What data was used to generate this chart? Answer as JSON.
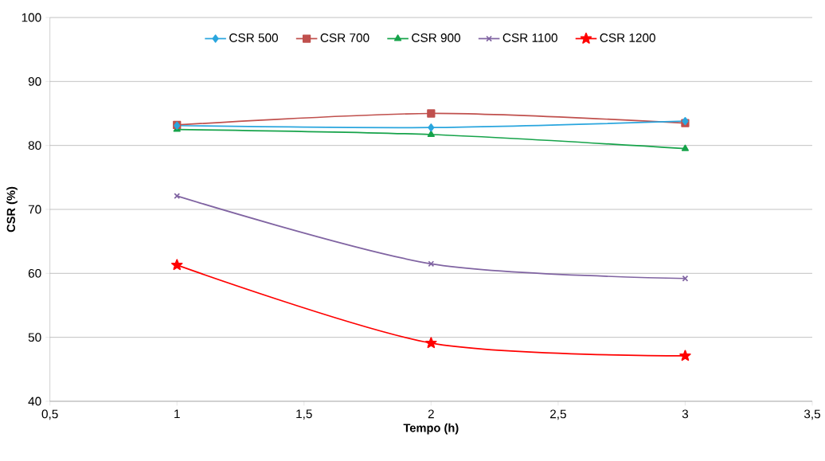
{
  "chart_data": {
    "type": "line",
    "xlabel": "Tempo (h)",
    "ylabel": "CSR (%)",
    "x": [
      1,
      2,
      3
    ],
    "series": [
      {
        "name": "CSR 500",
        "color": "#2aa6de",
        "marker": "diamond",
        "values": [
          83.1,
          82.8,
          83.8
        ]
      },
      {
        "name": "CSR 700",
        "color": "#c0504d",
        "marker": "square",
        "values": [
          83.2,
          85.0,
          83.5
        ]
      },
      {
        "name": "CSR 900",
        "color": "#16a34a",
        "marker": "triangle",
        "values": [
          82.5,
          81.7,
          79.5
        ]
      },
      {
        "name": "CSR 1100",
        "color": "#8064a2",
        "marker": "cross",
        "values": [
          72.1,
          61.5,
          59.2
        ]
      },
      {
        "name": "CSR 1200",
        "color": "#ff0000",
        "marker": "star",
        "values": [
          61.3,
          49.1,
          47.1
        ]
      }
    ],
    "xlim": [
      0.5,
      3.5
    ],
    "xticks": [
      {
        "value": 0.5,
        "label": "0,5"
      },
      1,
      {
        "value": 1.5,
        "label": "1,5"
      },
      2,
      {
        "value": 2.5,
        "label": "2,5"
      },
      3,
      {
        "value": 3.5,
        "label": "3,5"
      }
    ],
    "ylim": [
      40,
      100
    ],
    "yticks": [
      40,
      50,
      60,
      70,
      80,
      90,
      100
    ],
    "grid": "y",
    "legend": "top",
    "line_style": "solid"
  }
}
